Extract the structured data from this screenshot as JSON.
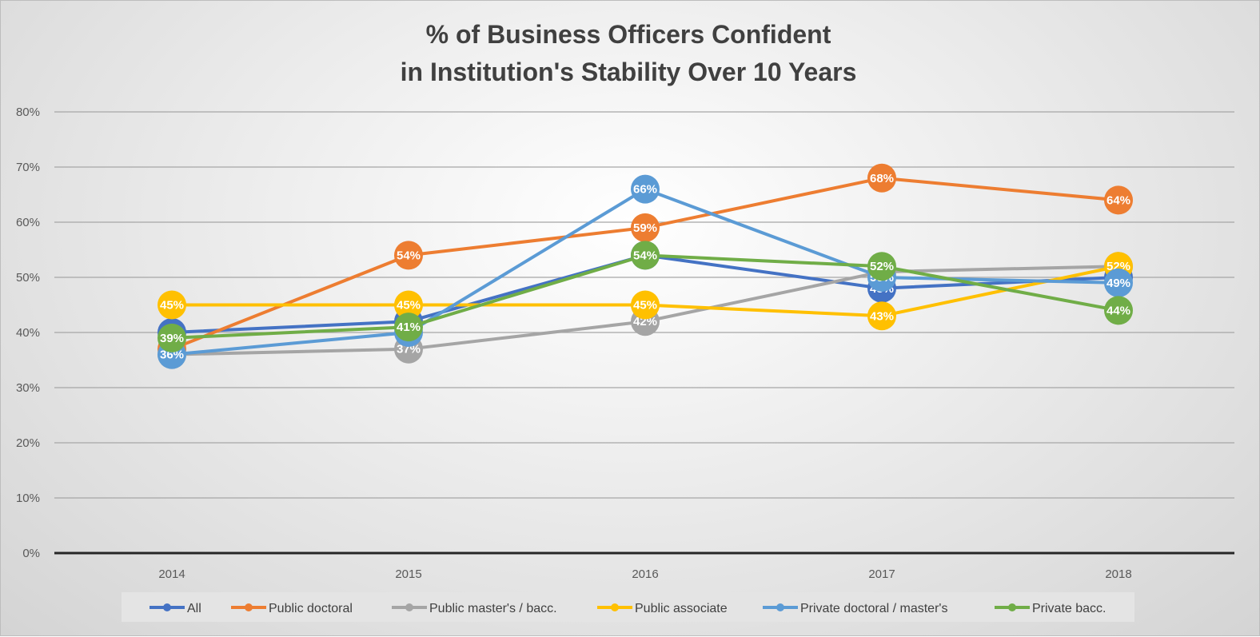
{
  "chart_data": {
    "type": "line",
    "title_lines": [
      "% of Business Officers Confident",
      "in Institution's Stability Over 10 Years"
    ],
    "categories": [
      "2014",
      "2015",
      "2016",
      "2017",
      "2018"
    ],
    "ylim": [
      0,
      80
    ],
    "y_ticks": [
      0,
      10,
      20,
      30,
      40,
      50,
      60,
      70,
      80
    ],
    "y_tick_labels": [
      "0%",
      "10%",
      "20%",
      "30%",
      "40%",
      "50%",
      "60%",
      "70%",
      "80%"
    ],
    "grid": true,
    "legend_position": "bottom",
    "series": [
      {
        "name": "All",
        "color": "#4472c4",
        "values": [
          40,
          42,
          54,
          48,
          50
        ],
        "labels": [
          "40%",
          "42%",
          "54%",
          "48%",
          "50%"
        ]
      },
      {
        "name": "Public doctoral",
        "color": "#ed7d31",
        "values": [
          37,
          54,
          59,
          68,
          64
        ],
        "labels": [
          "37%",
          "54%",
          "59%",
          "68%",
          "64%"
        ]
      },
      {
        "name": "Public master's / bacc.",
        "color": "#a5a5a5",
        "values": [
          36,
          37,
          42,
          51,
          52
        ],
        "labels": [
          "36%",
          "37%",
          "42%",
          "51%",
          "52%"
        ]
      },
      {
        "name": "Public associate",
        "color": "#ffc000",
        "values": [
          45,
          45,
          45,
          43,
          52
        ],
        "labels": [
          "45%",
          "45%",
          "45%",
          "43%",
          "52%"
        ]
      },
      {
        "name": "Private doctoral / master's",
        "color": "#5b9bd5",
        "values": [
          36,
          40,
          66,
          50,
          49
        ],
        "labels": [
          "36%",
          "40%",
          "66%",
          "50%",
          "49%"
        ]
      },
      {
        "name": "Private bacc.",
        "color": "#70ad47",
        "values": [
          39,
          41,
          54,
          52,
          44
        ],
        "labels": [
          "39%",
          "41%",
          "54%",
          "52%",
          "44%"
        ]
      }
    ]
  }
}
